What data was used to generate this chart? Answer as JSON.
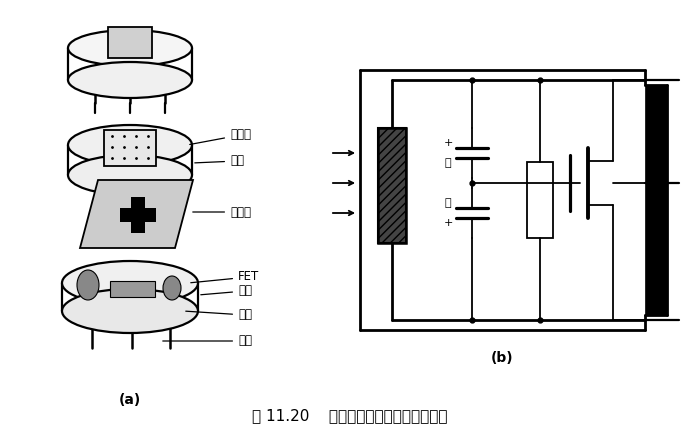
{
  "title": "图 11.20    热释电人体红外传感器的结构",
  "label_a": "(a)",
  "label_b": "(b)",
  "bg_color": "#ffffff",
  "line_color": "#000000",
  "lw": 1.3
}
